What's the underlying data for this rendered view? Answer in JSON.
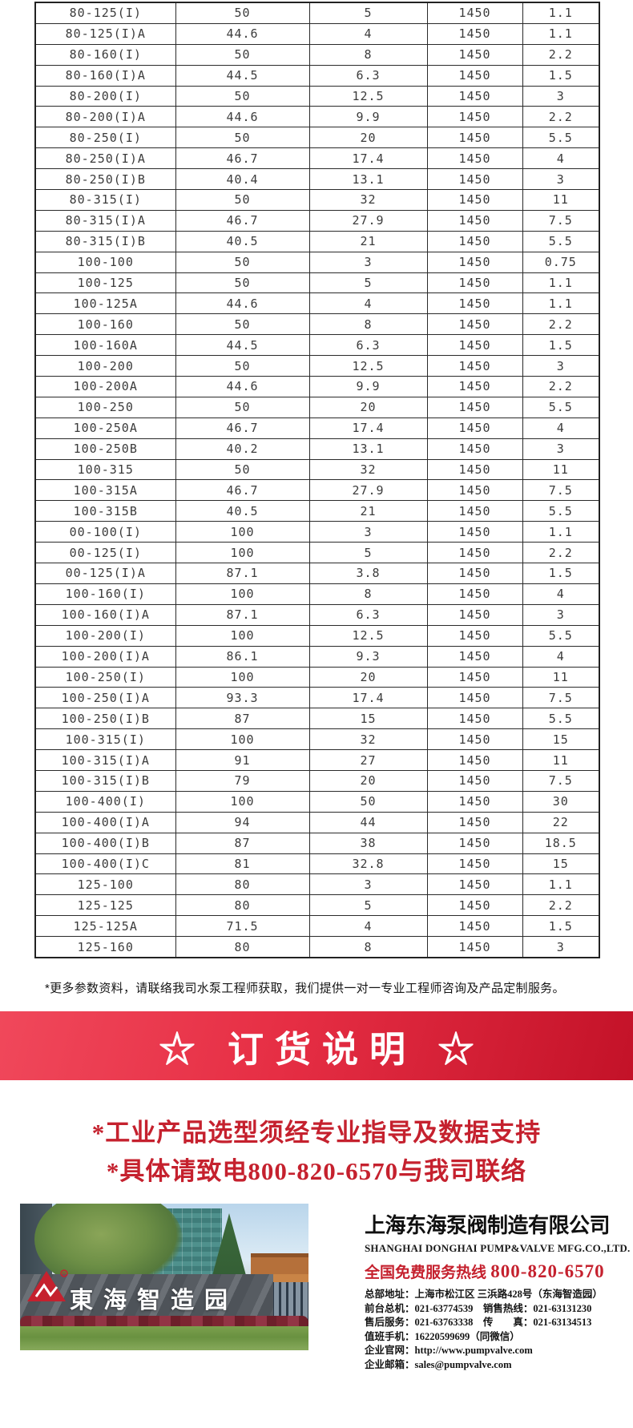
{
  "table": {
    "rows": [
      [
        "80-125(I)",
        "50",
        "5",
        "1450",
        "1.1"
      ],
      [
        "80-125(I)A",
        "44.6",
        "4",
        "1450",
        "1.1"
      ],
      [
        "80-160(I)",
        "50",
        "8",
        "1450",
        "2.2"
      ],
      [
        "80-160(I)A",
        "44.5",
        "6.3",
        "1450",
        "1.5"
      ],
      [
        "80-200(I)",
        "50",
        "12.5",
        "1450",
        "3"
      ],
      [
        "80-200(I)A",
        "44.6",
        "9.9",
        "1450",
        "2.2"
      ],
      [
        "80-250(I)",
        "50",
        "20",
        "1450",
        "5.5"
      ],
      [
        "80-250(I)A",
        "46.7",
        "17.4",
        "1450",
        "4"
      ],
      [
        "80-250(I)B",
        "40.4",
        "13.1",
        "1450",
        "3"
      ],
      [
        "80-315(I)",
        "50",
        "32",
        "1450",
        "11"
      ],
      [
        "80-315(I)A",
        "46.7",
        "27.9",
        "1450",
        "7.5"
      ],
      [
        "80-315(I)B",
        "40.5",
        "21",
        "1450",
        "5.5"
      ],
      [
        "100-100",
        "50",
        "3",
        "1450",
        "0.75"
      ],
      [
        "100-125",
        "50",
        "5",
        "1450",
        "1.1"
      ],
      [
        "100-125A",
        "44.6",
        "4",
        "1450",
        "1.1"
      ],
      [
        "100-160",
        "50",
        "8",
        "1450",
        "2.2"
      ],
      [
        "100-160A",
        "44.5",
        "6.3",
        "1450",
        "1.5"
      ],
      [
        "100-200",
        "50",
        "12.5",
        "1450",
        "3"
      ],
      [
        "100-200A",
        "44.6",
        "9.9",
        "1450",
        "2.2"
      ],
      [
        "100-250",
        "50",
        "20",
        "1450",
        "5.5"
      ],
      [
        "100-250A",
        "46.7",
        "17.4",
        "1450",
        "4"
      ],
      [
        "100-250B",
        "40.2",
        "13.1",
        "1450",
        "3"
      ],
      [
        "100-315",
        "50",
        "32",
        "1450",
        "11"
      ],
      [
        "100-315A",
        "46.7",
        "27.9",
        "1450",
        "7.5"
      ],
      [
        "100-315B",
        "40.5",
        "21",
        "1450",
        "5.5"
      ],
      [
        "00-100(I)",
        "100",
        "3",
        "1450",
        "1.1"
      ],
      [
        "00-125(I)",
        "100",
        "5",
        "1450",
        "2.2"
      ],
      [
        "00-125(I)A",
        "87.1",
        "3.8",
        "1450",
        "1.5"
      ],
      [
        "100-160(I)",
        "100",
        "8",
        "1450",
        "4"
      ],
      [
        "100-160(I)A",
        "87.1",
        "6.3",
        "1450",
        "3"
      ],
      [
        "100-200(I)",
        "100",
        "12.5",
        "1450",
        "5.5"
      ],
      [
        "100-200(I)A",
        "86.1",
        "9.3",
        "1450",
        "4"
      ],
      [
        "100-250(I)",
        "100",
        "20",
        "1450",
        "11"
      ],
      [
        "100-250(I)A",
        "93.3",
        "17.4",
        "1450",
        "7.5"
      ],
      [
        "100-250(I)B",
        "87",
        "15",
        "1450",
        "5.5"
      ],
      [
        "100-315(I)",
        "100",
        "32",
        "1450",
        "15"
      ],
      [
        "100-315(I)A",
        "91",
        "27",
        "1450",
        "11"
      ],
      [
        "100-315(I)B",
        "79",
        "20",
        "1450",
        "7.5"
      ],
      [
        "100-400(I)",
        "100",
        "50",
        "1450",
        "30"
      ],
      [
        "100-400(I)A",
        "94",
        "44",
        "1450",
        "22"
      ],
      [
        "100-400(I)B",
        "87",
        "38",
        "1450",
        "18.5"
      ],
      [
        "100-400(I)C",
        "81",
        "32.8",
        "1450",
        "15"
      ],
      [
        "125-100",
        "80",
        "3",
        "1450",
        "1.1"
      ],
      [
        "125-125",
        "80",
        "5",
        "1450",
        "2.2"
      ],
      [
        "125-125A",
        "71.5",
        "4",
        "1450",
        "1.5"
      ],
      [
        "125-160",
        "80",
        "8",
        "1450",
        "3"
      ]
    ]
  },
  "note": "*更多参数资料，请联络我司水泵工程师获取，我们提供一对一专业工程师咨询及产品定制服务。",
  "banner": {
    "title": "☆ 订货说明 ☆"
  },
  "statements": [
    "*工业产品选型须经专业指导及数据支持",
    "*具体请致电800-820-6570与我司联络"
  ],
  "photo": {
    "sign_text": "東海智造园",
    "logo": "donghai-mountain-logo"
  },
  "company": {
    "name_cn": "上海东海泵阀制造有限公司",
    "name_en": "SHANGHAI DONGHAI PUMP&VALVE MFG.CO.,LTD.",
    "hotline_label": "全国免费服务热线",
    "hotline_number": "800-820-6570",
    "contacts": [
      "总部地址：上海市松江区 三浜路428号（东海智造园）",
      "前台总机：021-63774539　销售热线：021-63131230",
      "售后服务：021-63763338　传　　真：021-63134513",
      "值班手机：16220599699（同微信）",
      "企业官网：http://www.pumpvalve.com",
      "企业邮箱：sales@pumpvalve.com"
    ]
  },
  "colors": {
    "banner_red_light": "#f0485b",
    "banner_red_dark": "#c31228",
    "accent_red": "#c5212e"
  }
}
